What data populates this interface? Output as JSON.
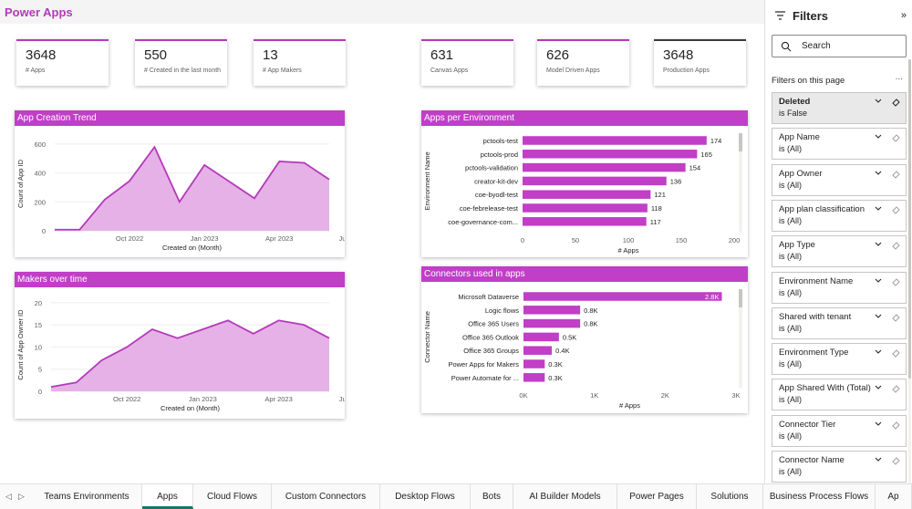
{
  "app_title": "Power Apps",
  "kpis": [
    {
      "value": "3648",
      "label": "# Apps"
    },
    {
      "value": "550",
      "label": "# Created in the last month"
    },
    {
      "value": "13",
      "label": "# App Makers"
    },
    {
      "value": "631",
      "label": "Canvas Apps"
    },
    {
      "value": "626",
      "label": "Model Driven Apps"
    },
    {
      "value": "3648",
      "label": "Production Apps"
    }
  ],
  "accent_color": "#c13ec7",
  "chart_data": [
    {
      "type": "area",
      "title": "App Creation Trend",
      "xlabel": "Created on (Month)",
      "ylabel": "Count of App ID",
      "x_ticks": [
        "Oct 2022",
        "Jan 2023",
        "Apr 2023",
        "Jul 2023"
      ],
      "y_ticks": [
        0,
        200,
        400,
        600
      ],
      "ylim": [
        0,
        650
      ],
      "values": [
        8,
        8,
        215,
        345,
        580,
        200,
        455,
        340,
        225,
        480,
        470,
        355
      ]
    },
    {
      "type": "area",
      "title": "Makers over time",
      "xlabel": "Created on (Month)",
      "ylabel": "Count of App Owner ID",
      "x_ticks": [
        "Oct 2022",
        "Jan 2023",
        "Apr 2023",
        "Jul 2023"
      ],
      "y_ticks": [
        0,
        5,
        10,
        15,
        20
      ],
      "ylim": [
        0,
        21
      ],
      "values": [
        1,
        2,
        7,
        10,
        14,
        12,
        14,
        16,
        13,
        16,
        15,
        12
      ]
    },
    {
      "type": "bar",
      "orientation": "horizontal",
      "title": "Apps per Environment",
      "xlabel": "# Apps",
      "ylabel": "Environment Name",
      "categories": [
        "pctools-test",
        "pctools-prod",
        "pctools-validation",
        "creator-kit-dev",
        "coe-byodl-test",
        "coe-febrelease-test",
        "coe-governance-com..."
      ],
      "values": [
        174,
        165,
        154,
        136,
        121,
        118,
        117
      ],
      "data_labels": [
        "174",
        "165",
        "154",
        "136",
        "121",
        "118",
        "117"
      ],
      "x_ticks": [
        0,
        50,
        100,
        150,
        200
      ],
      "xlim": [
        0,
        200
      ]
    },
    {
      "type": "bar",
      "orientation": "horizontal",
      "title": "Connectors used in apps",
      "xlabel": "# Apps",
      "ylabel": "Connector Name",
      "categories": [
        "Microsoft Dataverse",
        "Logic flows",
        "Office 365 Users",
        "Office 365 Outlook",
        "Office 365 Groups",
        "Power Apps for Makers",
        "Power Automate for ..."
      ],
      "values": [
        2800,
        800,
        800,
        500,
        400,
        300,
        300
      ],
      "data_labels": [
        "2.8K",
        "0.8K",
        "0.8K",
        "0.5K",
        "0.4K",
        "0.3K",
        "0.3K"
      ],
      "x_ticks": [
        "0K",
        "1K",
        "2K",
        "3K"
      ],
      "xlim": [
        0,
        3000
      ]
    }
  ],
  "filters": {
    "title": "Filters",
    "search_placeholder": "Search",
    "section_label": "Filters on this page",
    "more_label": "...",
    "items": [
      {
        "name": "Deleted",
        "value": "is False"
      },
      {
        "name": "App Name",
        "value": "is (All)"
      },
      {
        "name": "App Owner",
        "value": "is (All)"
      },
      {
        "name": "App plan classification",
        "value": "is (All)"
      },
      {
        "name": "App Type",
        "value": "is (All)"
      },
      {
        "name": "Environment Name",
        "value": "is (All)"
      },
      {
        "name": "Shared with tenant",
        "value": "is (All)"
      },
      {
        "name": "Environment Type",
        "value": "is (All)"
      },
      {
        "name": "App Shared With (Total)",
        "value": "is (All)"
      },
      {
        "name": "Connector Tier",
        "value": "is (All)"
      },
      {
        "name": "Connector Name",
        "value": "is (All)"
      }
    ]
  },
  "tabs": [
    {
      "label": "Teams Environments"
    },
    {
      "label": "Apps"
    },
    {
      "label": "Cloud Flows"
    },
    {
      "label": "Custom Connectors"
    },
    {
      "label": "Desktop Flows"
    },
    {
      "label": "Bots"
    },
    {
      "label": "AI Builder Models"
    },
    {
      "label": "Power Pages"
    },
    {
      "label": "Solutions"
    },
    {
      "label": "Business Process Flows"
    },
    {
      "label": "Ap"
    }
  ],
  "active_tab": "Apps"
}
